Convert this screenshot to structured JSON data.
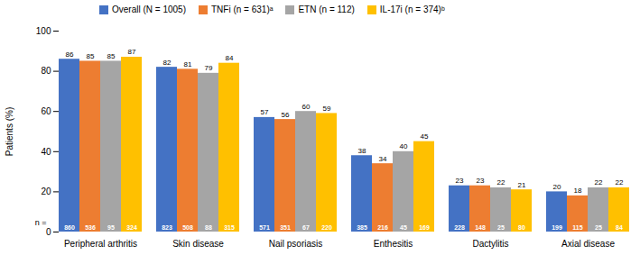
{
  "chart_data": {
    "type": "bar",
    "categories": [
      "Peripheral arthritis",
      "Skin disease",
      "Nail psoriasis",
      "Enthesitis",
      "Dactylitis",
      "Axial disease"
    ],
    "series": [
      {
        "name": "Overall (N = 1005)",
        "color": "#4472C4",
        "values": [
          86,
          82,
          57,
          38,
          23,
          20
        ],
        "n_values": [
          860,
          823,
          571,
          385,
          228,
          199
        ]
      },
      {
        "name": "TNFi (n = 631)ᵃ",
        "color": "#ED7D31",
        "values": [
          85,
          81,
          56,
          34,
          23,
          18
        ],
        "n_values": [
          536,
          508,
          351,
          216,
          148,
          115
        ]
      },
      {
        "name": "ETN (n = 112)",
        "color": "#A5A5A5",
        "values": [
          85,
          79,
          60,
          40,
          22,
          22
        ],
        "n_values": [
          95,
          88,
          67,
          45,
          25,
          25
        ]
      },
      {
        "name": "IL-17i (n = 374)ᵇ",
        "color": "#FFC000",
        "values": [
          87,
          84,
          59,
          45,
          21,
          22
        ],
        "n_values": [
          324,
          315,
          220,
          169,
          80,
          84
        ]
      }
    ],
    "ylabel": "Patients (%)",
    "annotations": [
      "n ="
    ],
    "ylim": [
      0,
      100
    ],
    "yticks": [
      0,
      20,
      40,
      60,
      80,
      100
    ],
    "grid": false,
    "legend": "upper left",
    "data_labels": true
  }
}
